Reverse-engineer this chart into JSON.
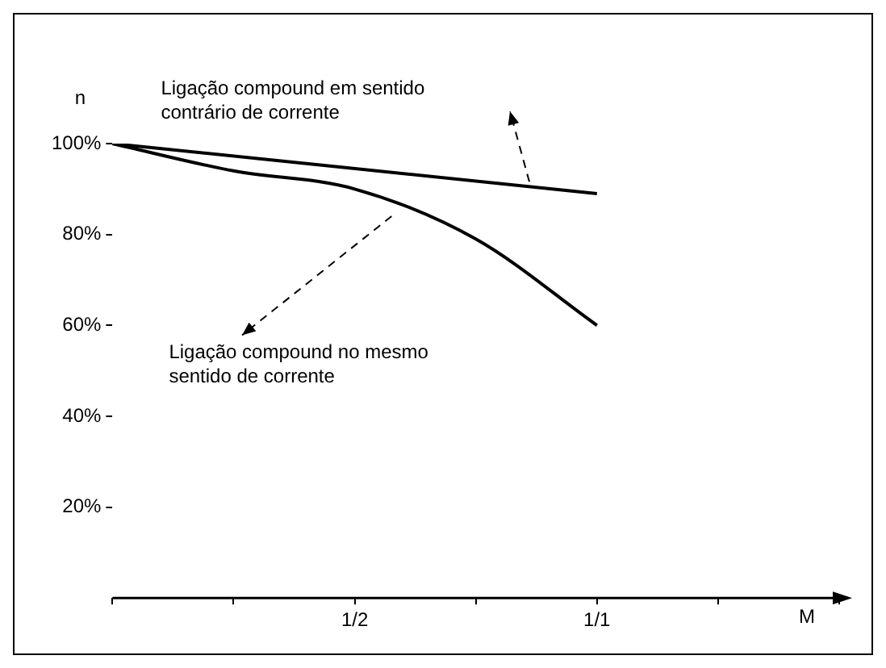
{
  "chart_data": {
    "type": "line",
    "xlabel": "M",
    "ylabel": "n",
    "categories": [
      null,
      null,
      "1/2",
      null,
      "1/1",
      null,
      null
    ],
    "series": [
      {
        "color": "#000000",
        "values": [
          100,
          null,
          null,
          null,
          89,
          null,
          null
        ]
      },
      {
        "color": "#000000",
        "values": [
          100,
          94,
          90,
          79,
          60,
          null,
          null
        ]
      }
    ],
    "ylim": [
      0,
      100
    ],
    "yticks": [
      {
        "value": 20,
        "label": "20%"
      },
      {
        "value": 40,
        "label": "40%"
      },
      {
        "value": 60,
        "label": "60%"
      },
      {
        "value": 80,
        "label": "80%"
      },
      {
        "value": 100,
        "label": "100%"
      }
    ],
    "annotations": [
      "Ligação compound em sentido contrário de corrente",
      "Ligação compound no mesmo sentido de corrente"
    ],
    "grid": false,
    "legend": false,
    "marker": "none",
    "line_style": "solid"
  }
}
